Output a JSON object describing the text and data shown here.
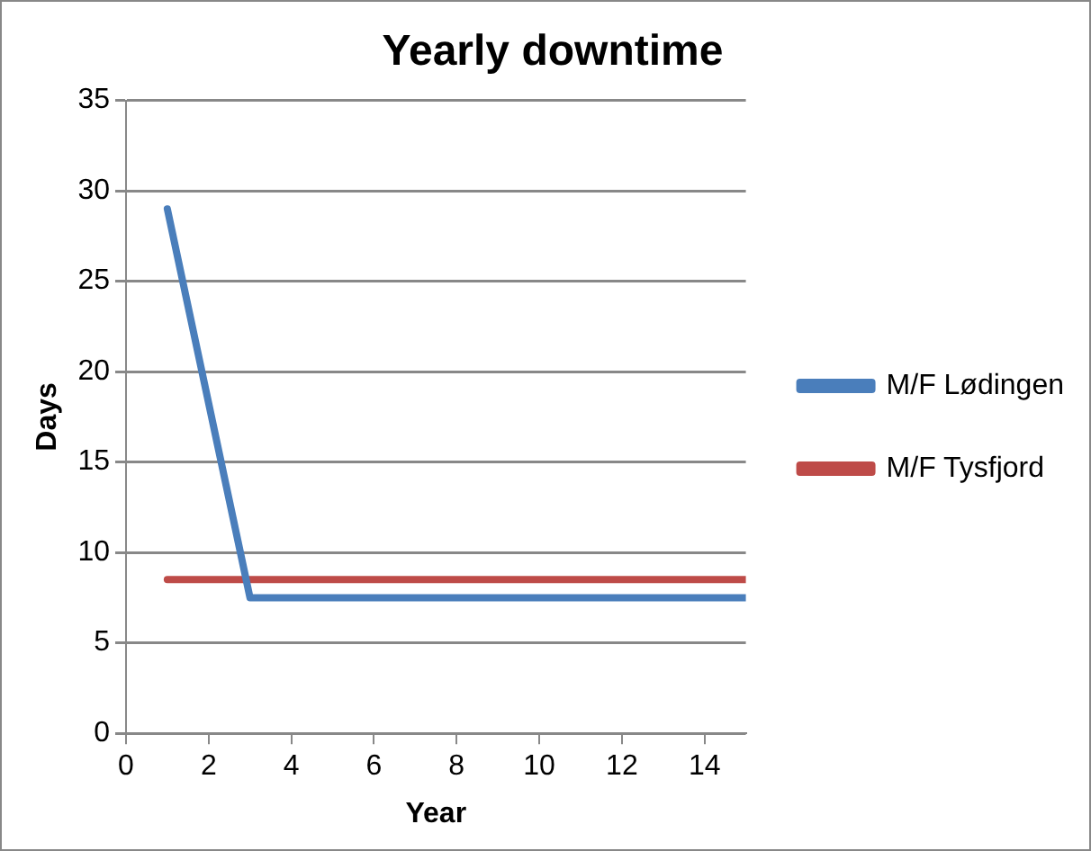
{
  "chart_data": {
    "type": "line",
    "title": "Yearly downtime",
    "xlabel": "Year",
    "ylabel": "Days",
    "xlim": [
      0,
      15
    ],
    "xticks": [
      0,
      2,
      4,
      6,
      8,
      10,
      12,
      14
    ],
    "ylim": [
      0,
      35
    ],
    "yticks": [
      0,
      5,
      10,
      15,
      20,
      25,
      30,
      35
    ],
    "grid": "y",
    "legend": "right",
    "marker": "none",
    "line_style": "solid",
    "series": [
      {
        "name": "M/F Lødingen",
        "color": "#4a7ebb",
        "x": [
          1,
          3,
          15
        ],
        "values": [
          29,
          7.5,
          7.5
        ]
      },
      {
        "name": "M/F Tysfjord",
        "color": "#be4b48",
        "x": [
          1,
          15
        ],
        "values": [
          8.5,
          8.5
        ]
      }
    ]
  }
}
